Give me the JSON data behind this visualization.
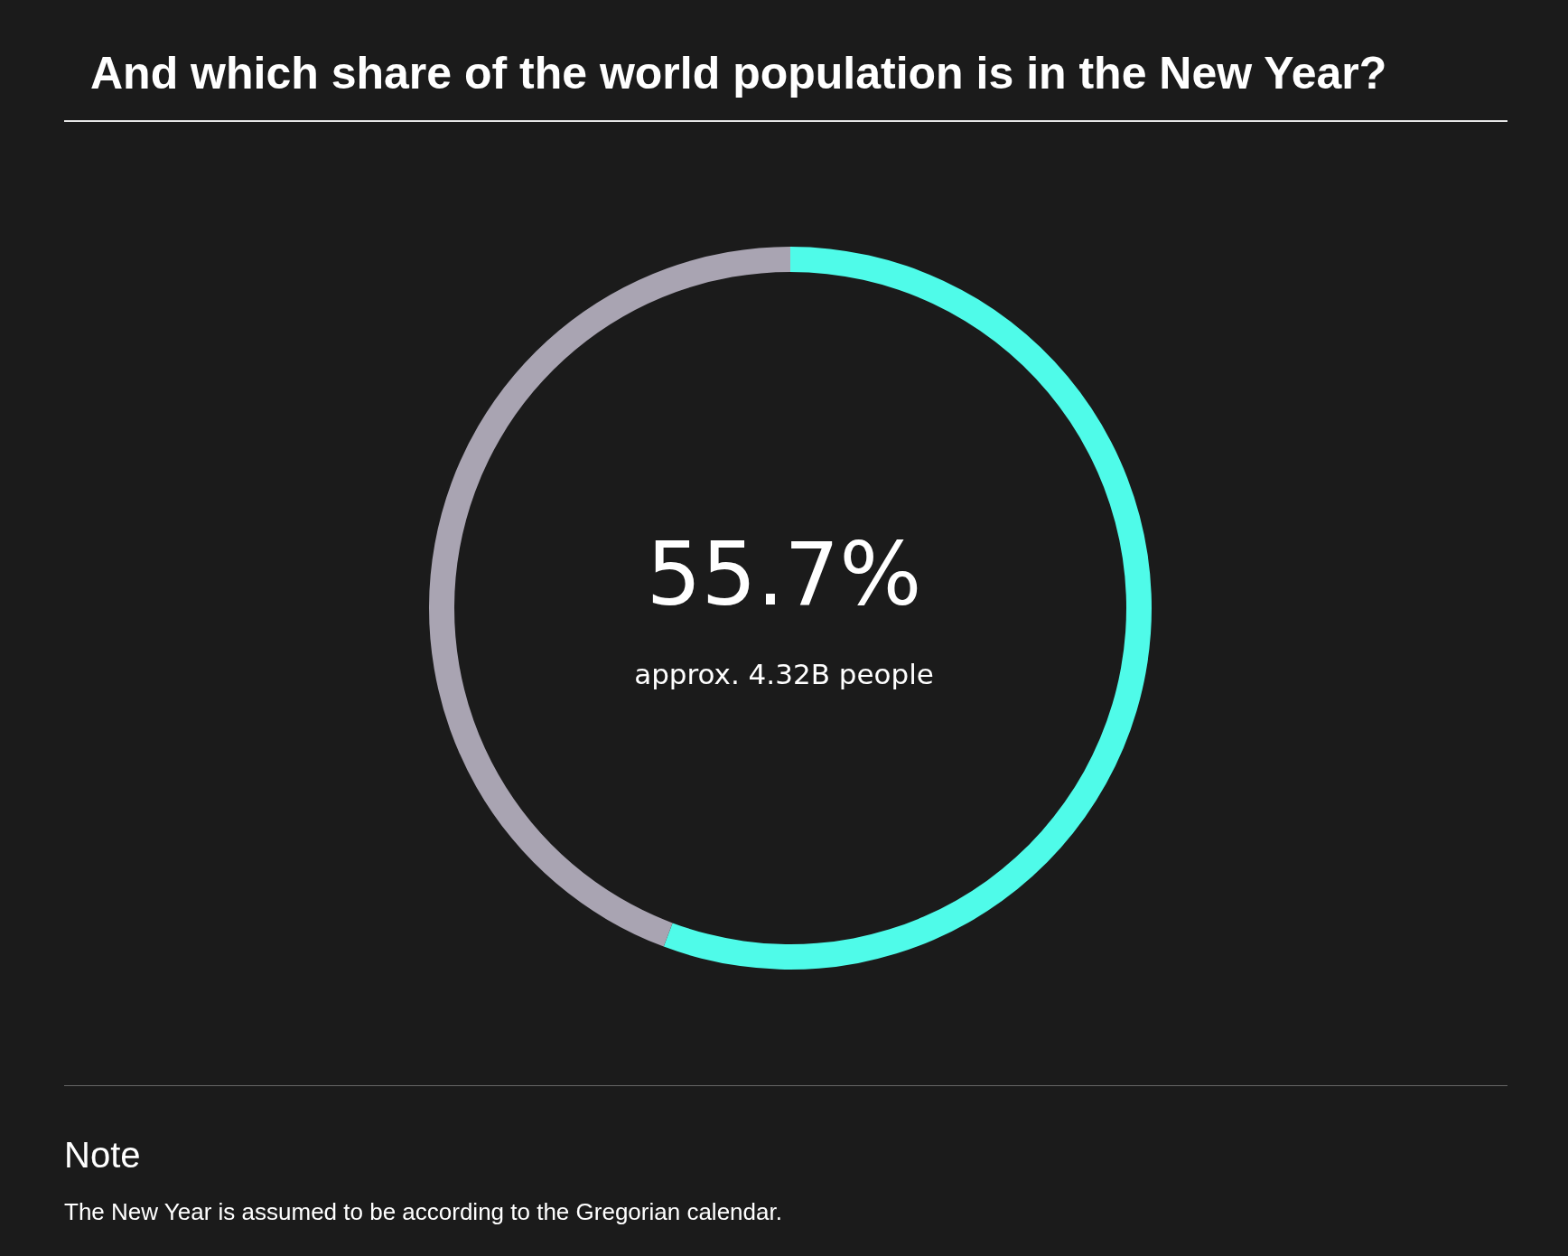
{
  "chart_data": {
    "type": "donut",
    "title": "And which share of the world population is in the New Year?",
    "categories": [
      null,
      null
    ],
    "values": [
      55.7,
      44.3
    ],
    "colors": [
      "#4ffbe9",
      "#a9a4b2"
    ],
    "annotations": [
      "55.7%",
      "approx. 4.32B people",
      "Note",
      "The New Year is assumed to be according to the Gregorian calendar."
    ],
    "legend": false
  }
}
